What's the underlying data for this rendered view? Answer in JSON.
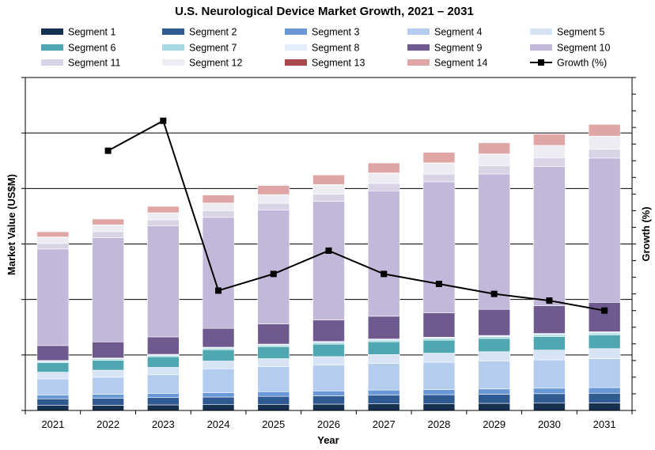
{
  "chart_data": {
    "type": "bar",
    "stacked": true,
    "title": "U.S. Neurological Device Market Growth, 2021 – 2031",
    "xlabel": "Year",
    "ylabel": "Market Value (US$M)",
    "y2label": "Growth (%)",
    "categories": [
      "2021",
      "2022",
      "2023",
      "2024",
      "2025",
      "2026",
      "2027",
      "2028",
      "2029",
      "2030",
      "2031"
    ],
    "ylim": [
      0,
      30
    ],
    "y2lim": [
      0,
      10
    ],
    "grid": true,
    "legend_position": "top",
    "series": [
      {
        "name": "Segment 1",
        "color": "#16304f",
        "values": [
          0.45,
          0.47,
          0.5,
          0.52,
          0.55,
          0.57,
          0.6,
          0.62,
          0.64,
          0.66,
          0.68
        ]
      },
      {
        "name": "Segment 2",
        "color": "#2f5a92",
        "values": [
          0.6,
          0.62,
          0.66,
          0.69,
          0.72,
          0.75,
          0.78,
          0.8,
          0.82,
          0.85,
          0.87
        ]
      },
      {
        "name": "Segment 3",
        "color": "#6a98d6",
        "values": [
          0.35,
          0.36,
          0.38,
          0.4,
          0.42,
          0.44,
          0.46,
          0.47,
          0.48,
          0.5,
          0.51
        ]
      },
      {
        "name": "Segment 4",
        "color": "#b4cdee",
        "values": [
          1.45,
          1.55,
          1.68,
          2.15,
          2.25,
          2.33,
          2.4,
          2.45,
          2.5,
          2.55,
          2.6
        ]
      },
      {
        "name": "Segment 5",
        "color": "#d6e4f5",
        "values": [
          0.6,
          0.63,
          0.66,
          0.69,
          0.73,
          0.76,
          0.8,
          0.82,
          0.85,
          0.88,
          0.91
        ]
      },
      {
        "name": "Segment 6",
        "color": "#4fa7b2",
        "values": [
          0.85,
          0.9,
          0.96,
          1.02,
          1.08,
          1.12,
          1.15,
          1.18,
          1.2,
          1.22,
          1.24
        ]
      },
      {
        "name": "Segment 7",
        "color": "#a6dbe3",
        "values": [
          0.12,
          0.12,
          0.13,
          0.14,
          0.14,
          0.15,
          0.15,
          0.16,
          0.16,
          0.17,
          0.17
        ]
      },
      {
        "name": "Segment 8",
        "color": "#e3eef8",
        "values": [
          0.08,
          0.08,
          0.09,
          0.09,
          0.09,
          0.1,
          0.1,
          0.1,
          0.11,
          0.11,
          0.11
        ]
      },
      {
        "name": "Segment 9",
        "color": "#6e5a8f",
        "values": [
          1.35,
          1.45,
          1.57,
          1.7,
          1.82,
          1.93,
          2.05,
          2.2,
          2.35,
          2.5,
          2.65
        ]
      },
      {
        "name": "Segment 10",
        "color": "#c2b8d9",
        "values": [
          8.7,
          9.4,
          10.0,
          10.0,
          10.25,
          10.7,
          11.3,
          11.8,
          12.2,
          12.55,
          13.0
        ]
      },
      {
        "name": "Segment 11",
        "color": "#d8d4e6",
        "values": [
          0.5,
          0.53,
          0.55,
          0.58,
          0.61,
          0.64,
          0.67,
          0.7,
          0.73,
          0.76,
          0.79
        ]
      },
      {
        "name": "Segment 12",
        "color": "#eeecf3",
        "values": [
          0.55,
          0.58,
          0.6,
          0.68,
          0.75,
          0.82,
          0.9,
          0.97,
          1.03,
          1.09,
          1.14
        ]
      },
      {
        "name": "Segment 13",
        "color": "#a84848",
        "values": [
          0.03,
          0.03,
          0.03,
          0.03,
          0.04,
          0.04,
          0.04,
          0.04,
          0.05,
          0.05,
          0.05
        ]
      },
      {
        "name": "Segment 14",
        "color": "#e0a6a6",
        "values": [
          0.47,
          0.53,
          0.58,
          0.72,
          0.82,
          0.87,
          0.9,
          0.95,
          1.0,
          1.01,
          1.05
        ]
      }
    ],
    "line_series": {
      "name": "Growth (%)",
      "color": "#000000",
      "axis": "secondary",
      "values": [
        null,
        7.8,
        8.7,
        3.6,
        4.1,
        4.8,
        4.1,
        3.8,
        3.5,
        3.3,
        3.0
      ]
    }
  }
}
